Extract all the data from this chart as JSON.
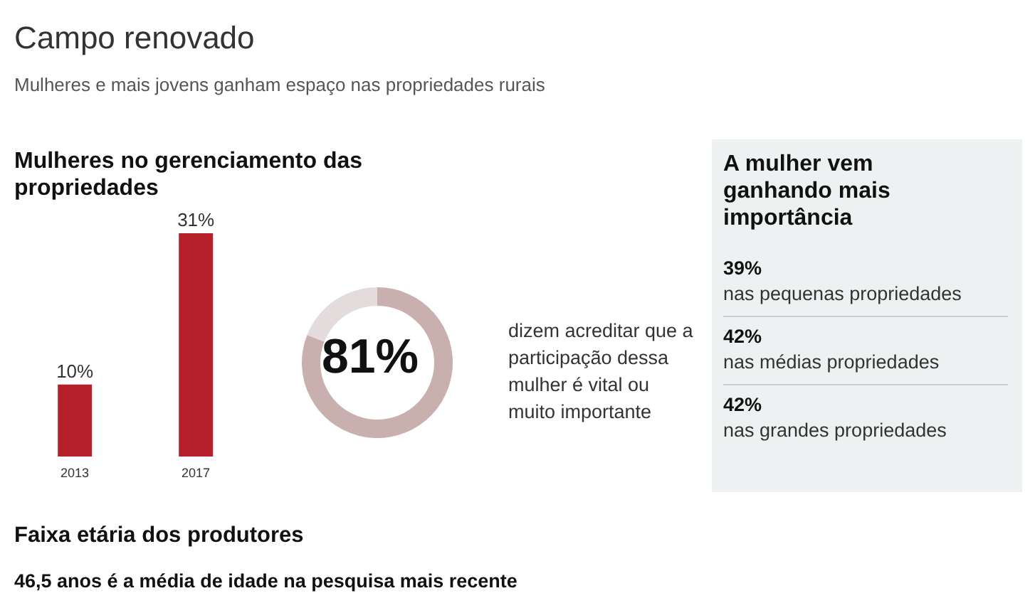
{
  "chart_data": [
    {
      "type": "other",
      "title": "Campo renovado",
      "subtitle": "Mulheres e mais jovens ganham espaço nas propriedades rurais"
    },
    {
      "type": "bar",
      "title": "Mulheres no gerenciamento das propriedades",
      "categories": [
        "2013",
        "2017"
      ],
      "values": [
        10,
        31
      ],
      "color": "#b5202a",
      "value_labels": [
        "10%",
        "31%"
      ]
    },
    {
      "type": "donut",
      "categories": [
        null,
        null
      ],
      "values": [
        81,
        19
      ],
      "colors": [
        "#c9afae",
        "#e4dcdc"
      ],
      "value_labels": [
        "81%",
        null
      ],
      "annotations": [
        "dizem acreditar que a participação dessa mulher é vital ou muito importante"
      ]
    },
    {
      "type": "other",
      "title": "A mulher vem ganhando mais importância",
      "annotations": [
        "39%",
        "nas pequenas propriedades",
        "42%",
        "nas médias propriedades",
        "42%",
        "nas grandes propriedades"
      ]
    },
    {
      "type": "other",
      "title": "Faixa etária dos produtores",
      "annotations": [
        "46,5 anos é a média de idade na pesquisa mais recente"
      ]
    }
  ]
}
